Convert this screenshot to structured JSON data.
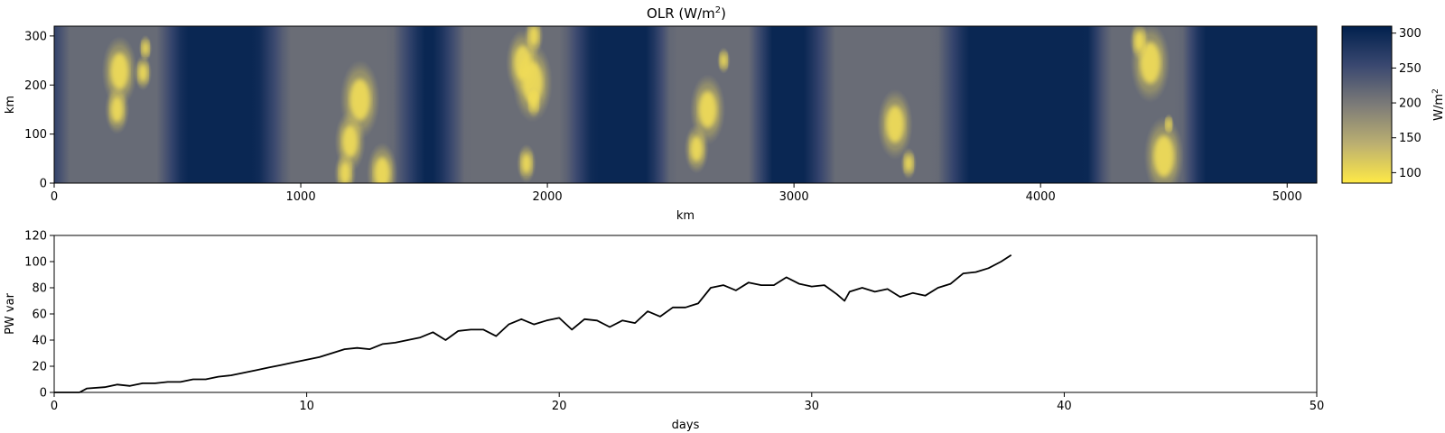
{
  "colors": {
    "cividis_low": "#ffea46",
    "cividis_mid": "#7c7b78",
    "cividis_high": "#00204d",
    "line": "#000000"
  },
  "chart_data": [
    {
      "type": "heatmap",
      "title": "OLR (W/m²)",
      "title_main": "OLR (W/m",
      "title_sup": "2",
      "title_end": ")",
      "xlabel": "km",
      "ylabel": "km",
      "xlim": [
        0,
        5120
      ],
      "ylim": [
        0,
        320
      ],
      "xticks": [
        0,
        1000,
        2000,
        3000,
        4000,
        5000
      ],
      "yticks": [
        0,
        100,
        200,
        300
      ],
      "colormap": "cividis",
      "colorbar": {
        "label_main": "W/m",
        "label_sup": "2",
        "range": [
          85,
          310
        ],
        "ticks": [
          100,
          150,
          200,
          250,
          300
        ]
      },
      "convective_bands": [
        {
          "x_range": [
            0,
            480
          ],
          "olr_min": 110
        },
        {
          "x_range": [
            880,
            1440
          ],
          "olr_min": 100
        },
        {
          "x_range": [
            1600,
            2130
          ],
          "olr_min": 100
        },
        {
          "x_range": [
            2450,
            2870
          ],
          "olr_min": 105
        },
        {
          "x_range": [
            3100,
            3650
          ],
          "olr_min": 105
        },
        {
          "x_range": [
            4230,
            4620
          ],
          "olr_min": 110
        }
      ],
      "bright_cores": [
        {
          "x": 265,
          "y": 228,
          "r": 40
        },
        {
          "x": 255,
          "y": 150,
          "r": 28
        },
        {
          "x": 370,
          "y": 275,
          "r": 15
        },
        {
          "x": 360,
          "y": 225,
          "r": 20
        },
        {
          "x": 1240,
          "y": 170,
          "r": 45
        },
        {
          "x": 1200,
          "y": 85,
          "r": 35
        },
        {
          "x": 1330,
          "y": 20,
          "r": 35
        },
        {
          "x": 1180,
          "y": 20,
          "r": 25
        },
        {
          "x": 1900,
          "y": 245,
          "r": 38
        },
        {
          "x": 1940,
          "y": 205,
          "r": 45
        },
        {
          "x": 1945,
          "y": 165,
          "r": 18
        },
        {
          "x": 1945,
          "y": 300,
          "r": 22
        },
        {
          "x": 1915,
          "y": 40,
          "r": 22
        },
        {
          "x": 2650,
          "y": 150,
          "r": 40
        },
        {
          "x": 2605,
          "y": 70,
          "r": 28
        },
        {
          "x": 2715,
          "y": 250,
          "r": 15
        },
        {
          "x": 3410,
          "y": 120,
          "r": 40
        },
        {
          "x": 3465,
          "y": 40,
          "r": 18
        },
        {
          "x": 4445,
          "y": 245,
          "r": 45
        },
        {
          "x": 4500,
          "y": 55,
          "r": 45
        },
        {
          "x": 4520,
          "y": 120,
          "r": 12
        },
        {
          "x": 4400,
          "y": 290,
          "r": 22
        }
      ]
    },
    {
      "type": "line",
      "xlabel": "days",
      "ylabel": "PW var",
      "xlim": [
        0,
        50
      ],
      "ylim": [
        0,
        120
      ],
      "xticks": [
        0,
        10,
        20,
        30,
        40,
        50
      ],
      "yticks": [
        0,
        20,
        40,
        60,
        80,
        100,
        120
      ],
      "x": [
        0,
        1,
        1.3,
        2,
        2.5,
        3,
        3.5,
        4,
        4.5,
        5,
        5.5,
        6,
        6.5,
        7,
        7.5,
        8,
        8.5,
        9,
        9.5,
        10,
        10.5,
        11,
        11.5,
        12,
        12.5,
        13,
        13.5,
        14,
        14.5,
        15,
        15.5,
        16,
        16.5,
        17,
        17.5,
        18,
        18.5,
        19,
        19.5,
        20,
        20.5,
        21,
        21.5,
        22,
        22.5,
        23,
        23.5,
        24,
        24.5,
        25,
        25.5,
        26,
        26.5,
        27,
        27.5,
        28,
        28.5,
        29,
        29.5,
        30,
        30.5,
        31,
        31.3,
        31.5,
        32,
        32.5,
        33,
        33.5,
        34,
        34.5,
        35,
        35.5,
        36,
        36.5,
        37,
        37.5,
        37.9
      ],
      "values": [
        0,
        0,
        3,
        4,
        6,
        5,
        7,
        7,
        8,
        8,
        10,
        10,
        12,
        13,
        15,
        17,
        19,
        21,
        23,
        25,
        27,
        30,
        33,
        34,
        33,
        37,
        38,
        40,
        42,
        46,
        40,
        47,
        48,
        48,
        43,
        52,
        56,
        52,
        55,
        57,
        48,
        56,
        55,
        50,
        55,
        53,
        62,
        58,
        65,
        65,
        68,
        80,
        82,
        78,
        84,
        82,
        82,
        88,
        83,
        81,
        82,
        75,
        70,
        77,
        80,
        77,
        79,
        73,
        76,
        74,
        80,
        83,
        91,
        92,
        95,
        100,
        105
      ]
    }
  ]
}
